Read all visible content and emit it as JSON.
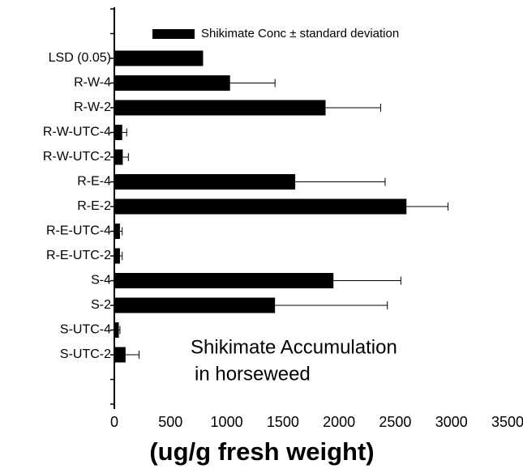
{
  "chart_data": {
    "type": "bar",
    "orientation": "horizontal",
    "categories": [
      null,
      null,
      "LSD (0.05)",
      "R-W-4",
      "R-W-2",
      "R-W-UTC-4",
      "R-W-UTC-2",
      "R-E-4",
      "R-E-2",
      "R-E-UTC-4",
      "R-E-UTC-2",
      "S-4",
      "S-2",
      "S-UTC-4",
      "S-UTC-2",
      null,
      null
    ],
    "series": [
      {
        "name": "Shikimate Conc ± standard deviation",
        "color": "#000000",
        "values": [
          null,
          null,
          790,
          1030,
          1880,
          70,
          75,
          1610,
          2600,
          50,
          50,
          1950,
          1430,
          40,
          100,
          null,
          null
        ],
        "errors": [
          null,
          null,
          null,
          400,
          490,
          40,
          50,
          800,
          370,
          20,
          20,
          600,
          1000,
          10,
          120,
          null,
          null
        ]
      }
    ],
    "xlim": [
      0,
      3500
    ],
    "xticks": [
      0,
      500,
      1000,
      1500,
      2000,
      2500,
      3000,
      3500
    ],
    "xlabel": "(ug/g fresh weight)",
    "annotations": [
      "Shikimate Accumulation",
      "in horseweed"
    ],
    "legend": "top-right",
    "grid": false
  }
}
